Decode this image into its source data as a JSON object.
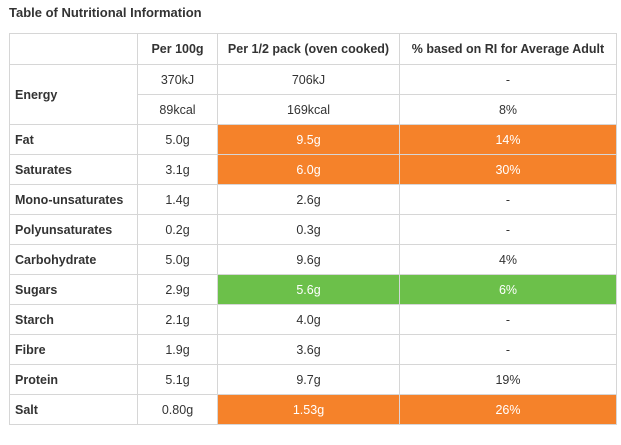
{
  "title": "Table of Nutritional Information",
  "columns": [
    "",
    "Per 100g",
    "Per 1/2 pack (oven cooked)",
    "% based on RI for Average Adult"
  ],
  "colors": {
    "high": "#f5822a",
    "low": "#6cc04a"
  },
  "energy": {
    "label": "Energy",
    "kj": {
      "per100": "370kJ",
      "half": "706kJ",
      "ri": "-"
    },
    "kcal": {
      "per100": "89kcal",
      "half": "169kcal",
      "ri": "8%"
    }
  },
  "rows": [
    {
      "label": "Fat",
      "per100": "5.0g",
      "half": "9.5g",
      "ri": "14%",
      "level": "high"
    },
    {
      "label": "Saturates",
      "per100": "3.1g",
      "half": "6.0g",
      "ri": "30%",
      "level": "high"
    },
    {
      "label": "Mono-unsaturates",
      "per100": "1.4g",
      "half": "2.6g",
      "ri": "-",
      "level": ""
    },
    {
      "label": "Polyunsaturates",
      "per100": "0.2g",
      "half": "0.3g",
      "ri": "-",
      "level": ""
    },
    {
      "label": "Carbohydrate",
      "per100": "5.0g",
      "half": "9.6g",
      "ri": "4%",
      "level": ""
    },
    {
      "label": "Sugars",
      "per100": "2.9g",
      "half": "5.6g",
      "ri": "6%",
      "level": "low"
    },
    {
      "label": "Starch",
      "per100": "2.1g",
      "half": "4.0g",
      "ri": "-",
      "level": ""
    },
    {
      "label": "Fibre",
      "per100": "1.9g",
      "half": "3.6g",
      "ri": "-",
      "level": ""
    },
    {
      "label": "Protein",
      "per100": "5.1g",
      "half": "9.7g",
      "ri": "19%",
      "level": ""
    },
    {
      "label": "Salt",
      "per100": "0.80g",
      "half": "1.53g",
      "ri": "26%",
      "level": "high"
    }
  ]
}
